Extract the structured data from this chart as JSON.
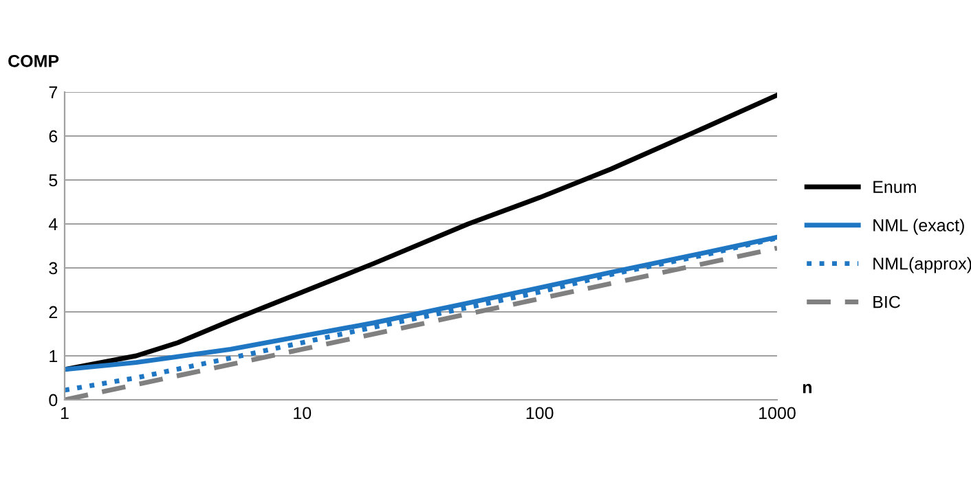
{
  "chart_data": {
    "type": "line",
    "xlabel": "n",
    "ylabel": "COMP",
    "log": "x",
    "xlim": [
      1,
      1000
    ],
    "ylim": [
      0,
      7
    ],
    "xticks": [
      1,
      10,
      100,
      1000
    ],
    "yticks": [
      0,
      1,
      2,
      3,
      4,
      5,
      6,
      7
    ],
    "grid": "y",
    "legend": "right",
    "marker": "none",
    "series": [
      {
        "name": "Enum",
        "color": "#000000",
        "line_style": "solid",
        "x": [
          1,
          2,
          3,
          5,
          10,
          20,
          50,
          100,
          200,
          500,
          1000
        ],
        "values": [
          0.69,
          1.0,
          1.3,
          1.8,
          2.45,
          3.1,
          4.0,
          4.6,
          5.25,
          6.2,
          6.93
        ]
      },
      {
        "name": "NML (exact)",
        "color": "#1f77c4",
        "line_style": "solid",
        "x": [
          1,
          2,
          5,
          10,
          20,
          50,
          100,
          200,
          500,
          1000
        ],
        "values": [
          0.69,
          0.85,
          1.15,
          1.45,
          1.75,
          2.2,
          2.55,
          2.9,
          3.35,
          3.7
        ]
      },
      {
        "name": "NML(approx)",
        "color": "#1f77c4",
        "line_style": "dotted",
        "x": [
          1,
          2,
          5,
          10,
          20,
          50,
          100,
          200,
          500,
          1000
        ],
        "values": [
          0.22,
          0.5,
          0.95,
          1.3,
          1.65,
          2.1,
          2.45,
          2.85,
          3.3,
          3.68
        ]
      },
      {
        "name": "BIC",
        "color": "#808080",
        "line_style": "dashed",
        "x": [
          1,
          10,
          100,
          1000
        ],
        "values": [
          0.0,
          1.15,
          2.3,
          3.45
        ]
      }
    ]
  }
}
